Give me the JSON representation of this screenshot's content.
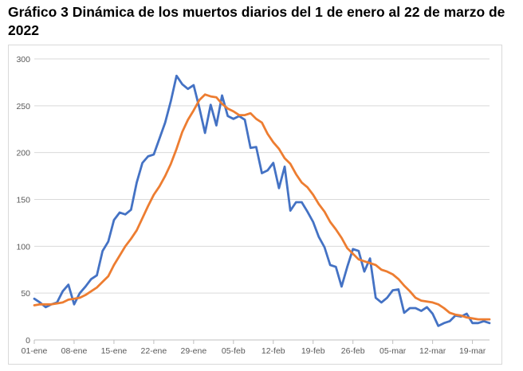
{
  "chart_data": {
    "type": "line",
    "title": "Gráfico 3 Dinámica de los muertos diarios del 1 de enero al 22 de marzo de 2022",
    "xlabel": "",
    "ylabel": "",
    "ylim": [
      0,
      300
    ],
    "yticks": [
      0,
      50,
      100,
      150,
      200,
      250,
      300
    ],
    "x_tick_labels": [
      "01-ene",
      "08-ene",
      "15-ene",
      "22-ene",
      "29-ene",
      "05-feb",
      "12-feb",
      "19-feb",
      "26-feb",
      "05-mar",
      "12-mar",
      "19-mar"
    ],
    "x_tick_every": 7,
    "grid": "horizontal",
    "legend": "none",
    "colors": {
      "daily": "#4472c4",
      "average": "#ed7d31",
      "grid": "#d9d9d9",
      "axis": "#bfbfbf",
      "text": "#595959"
    },
    "series": [
      {
        "color": "#4472c4",
        "values": [
          44,
          40,
          35,
          38,
          40,
          52,
          59,
          38,
          50,
          57,
          65,
          69,
          95,
          105,
          128,
          136,
          134,
          139,
          168,
          189,
          196,
          198,
          215,
          232,
          255,
          282,
          273,
          268,
          272,
          248,
          221,
          251,
          229,
          261,
          239,
          236,
          239,
          235,
          205,
          206,
          178,
          181,
          189,
          162,
          185,
          138,
          147,
          147,
          137,
          126,
          110,
          99,
          80,
          78,
          57,
          78,
          97,
          95,
          73,
          87,
          45,
          40,
          45,
          53,
          54,
          29,
          34,
          34,
          31,
          35,
          28,
          15,
          18,
          20,
          26,
          25,
          28,
          18,
          18,
          20,
          18
        ]
      },
      {
        "color": "#ed7d31",
        "values": [
          37,
          38,
          38,
          38,
          39,
          40,
          43,
          44,
          45,
          48,
          52,
          56,
          62,
          68,
          80,
          90,
          100,
          108,
          117,
          130,
          143,
          155,
          164,
          175,
          188,
          204,
          222,
          235,
          245,
          256,
          262,
          260,
          259,
          252,
          247,
          244,
          240,
          240,
          242,
          236,
          232,
          220,
          211,
          204,
          194,
          188,
          177,
          168,
          163,
          155,
          145,
          137,
          126,
          118,
          109,
          98,
          92,
          86,
          84,
          82,
          80,
          75,
          73,
          70,
          65,
          58,
          52,
          45,
          42,
          41,
          40,
          38,
          34,
          29,
          27,
          26,
          24,
          23,
          22,
          22,
          22
        ]
      }
    ]
  }
}
